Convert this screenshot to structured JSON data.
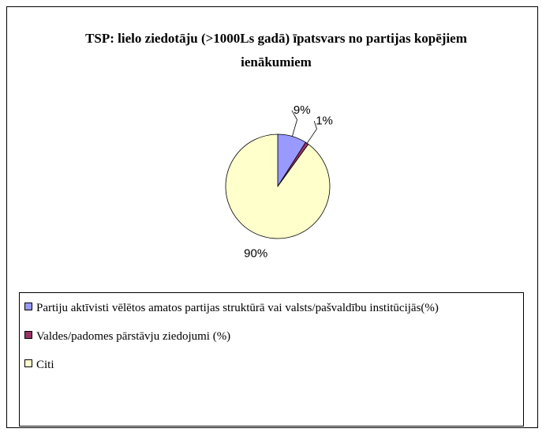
{
  "chart_data": {
    "type": "pie",
    "title": "TSP: lielo ziedotāju (>1000Ls gadā) īpatsvars no partijas kopējiem ienākumiem",
    "categories": [
      "Partiju aktīvisti vēlētos amatos partijas struktūrā vai valsts/pašvaldību institūcijās(%)",
      "Valdes/padomes pārstāvju ziedojumi (%)",
      "Citi"
    ],
    "values": [
      9,
      1,
      90
    ],
    "value_labels": [
      "9%",
      "1%",
      "90%"
    ],
    "colors": [
      "#9999ff",
      "#993366",
      "#ffffcc"
    ],
    "legend": "bottom"
  }
}
